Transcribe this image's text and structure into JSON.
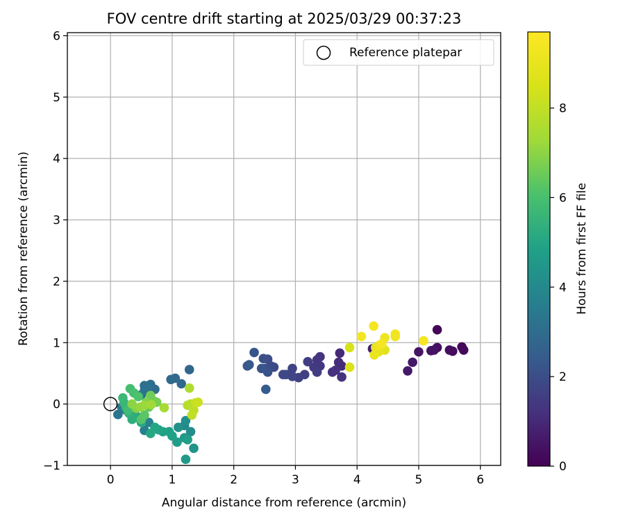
{
  "chart_data": {
    "type": "scatter",
    "title": "FOV centre drift starting at 2025/03/29 00:37:23",
    "xlabel": "Angular distance from reference (arcmin)",
    "ylabel": "Rotation from reference (arcmin)",
    "xlim": [
      -0.7,
      6.33
    ],
    "ylim": [
      -1.0,
      6.05
    ],
    "xticks": [
      0,
      1,
      2,
      3,
      4,
      5,
      6
    ],
    "yticks": [
      -1,
      0,
      1,
      2,
      3,
      4,
      5,
      6
    ],
    "grid": true,
    "legend": {
      "placement": "top-right",
      "entries": [
        "Reference platepar"
      ]
    },
    "reference_point": {
      "x": 0,
      "y": 0,
      "label": "Reference platepar"
    },
    "colorbar": {
      "label": "Hours from first FF file",
      "colormap": "viridis",
      "range": [
        0,
        9.7
      ],
      "ticks": [
        0,
        2,
        4,
        6,
        8
      ]
    },
    "points": [
      {
        "x": 5.3,
        "y": 1.21,
        "h": 0.1
      },
      {
        "x": 5.7,
        "y": 0.93,
        "h": 0.15
      },
      {
        "x": 5.73,
        "y": 0.88,
        "h": 0.2
      },
      {
        "x": 5.55,
        "y": 0.86,
        "h": 0.25
      },
      {
        "x": 5.5,
        "y": 0.88,
        "h": 0.3
      },
      {
        "x": 5.3,
        "y": 0.92,
        "h": 0.35
      },
      {
        "x": 5.25,
        "y": 0.88,
        "h": 0.4
      },
      {
        "x": 5.2,
        "y": 0.87,
        "h": 0.45
      },
      {
        "x": 5.0,
        "y": 0.85,
        "h": 0.5
      },
      {
        "x": 4.9,
        "y": 0.68,
        "h": 0.55
      },
      {
        "x": 4.82,
        "y": 0.54,
        "h": 0.6
      },
      {
        "x": 4.25,
        "y": 0.9,
        "h": 0.7
      },
      {
        "x": 3.72,
        "y": 0.83,
        "h": 1.0
      },
      {
        "x": 3.75,
        "y": 0.62,
        "h": 1.05
      },
      {
        "x": 3.7,
        "y": 0.68,
        "h": 1.1
      },
      {
        "x": 3.65,
        "y": 0.55,
        "h": 1.15
      },
      {
        "x": 3.6,
        "y": 0.52,
        "h": 1.2
      },
      {
        "x": 3.75,
        "y": 0.44,
        "h": 1.25
      },
      {
        "x": 3.4,
        "y": 0.77,
        "h": 1.3
      },
      {
        "x": 3.35,
        "y": 0.72,
        "h": 1.35
      },
      {
        "x": 3.4,
        "y": 0.62,
        "h": 1.4
      },
      {
        "x": 3.3,
        "y": 0.6,
        "h": 1.45
      },
      {
        "x": 3.35,
        "y": 0.52,
        "h": 1.5
      },
      {
        "x": 3.2,
        "y": 0.69,
        "h": 1.55
      },
      {
        "x": 3.15,
        "y": 0.48,
        "h": 1.6
      },
      {
        "x": 3.05,
        "y": 0.43,
        "h": 1.65
      },
      {
        "x": 2.95,
        "y": 0.58,
        "h": 1.7
      },
      {
        "x": 2.95,
        "y": 0.45,
        "h": 1.75
      },
      {
        "x": 2.85,
        "y": 0.48,
        "h": 1.8
      },
      {
        "x": 2.8,
        "y": 0.48,
        "h": 1.85
      },
      {
        "x": 2.65,
        "y": 0.6,
        "h": 1.9
      },
      {
        "x": 2.6,
        "y": 0.62,
        "h": 1.95
      },
      {
        "x": 2.55,
        "y": 0.73,
        "h": 2.0
      },
      {
        "x": 2.48,
        "y": 0.74,
        "h": 2.05
      },
      {
        "x": 2.5,
        "y": 0.58,
        "h": 2.1
      },
      {
        "x": 2.55,
        "y": 0.52,
        "h": 2.15
      },
      {
        "x": 2.45,
        "y": 0.58,
        "h": 2.2
      },
      {
        "x": 2.33,
        "y": 0.84,
        "h": 2.25
      },
      {
        "x": 2.25,
        "y": 0.64,
        "h": 2.3
      },
      {
        "x": 2.22,
        "y": 0.62,
        "h": 2.35
      },
      {
        "x": 2.52,
        "y": 0.24,
        "h": 2.4
      },
      {
        "x": 1.28,
        "y": 0.56,
        "h": 2.8
      },
      {
        "x": 1.15,
        "y": 0.33,
        "h": 2.85
      },
      {
        "x": 1.05,
        "y": 0.42,
        "h": 2.9
      },
      {
        "x": 0.98,
        "y": 0.4,
        "h": 2.95
      },
      {
        "x": 0.72,
        "y": 0.24,
        "h": 3.0
      },
      {
        "x": 0.65,
        "y": 0.32,
        "h": 3.05
      },
      {
        "x": 0.55,
        "y": 0.3,
        "h": 3.1
      },
      {
        "x": 0.6,
        "y": 0.25,
        "h": 3.15
      },
      {
        "x": 0.55,
        "y": 0.22,
        "h": 3.2
      },
      {
        "x": 0.5,
        "y": 0.15,
        "h": 3.25
      },
      {
        "x": 0.12,
        "y": -0.17,
        "h": 3.3
      },
      {
        "x": 0.18,
        "y": -0.05,
        "h": 3.35
      },
      {
        "x": 0.25,
        "y": -0.1,
        "h": 3.4
      },
      {
        "x": 0.45,
        "y": -0.22,
        "h": 3.5
      },
      {
        "x": 0.55,
        "y": -0.43,
        "h": 3.6
      },
      {
        "x": 0.62,
        "y": -0.3,
        "h": 3.7
      },
      {
        "x": 0.4,
        "y": -0.18,
        "h": 3.8
      },
      {
        "x": 1.2,
        "y": -0.35,
        "h": 4.0
      },
      {
        "x": 1.3,
        "y": -0.45,
        "h": 4.1
      },
      {
        "x": 1.22,
        "y": -0.27,
        "h": 4.2
      },
      {
        "x": 1.1,
        "y": -0.38,
        "h": 4.3
      },
      {
        "x": 1.35,
        "y": -0.72,
        "h": 4.4
      },
      {
        "x": 1.2,
        "y": -0.55,
        "h": 4.5
      },
      {
        "x": 1.22,
        "y": -0.9,
        "h": 4.6
      },
      {
        "x": 1.08,
        "y": -0.62,
        "h": 4.7
      },
      {
        "x": 1.25,
        "y": -0.58,
        "h": 4.75
      },
      {
        "x": 1.0,
        "y": -0.52,
        "h": 4.8
      },
      {
        "x": 0.95,
        "y": -0.45,
        "h": 4.85
      },
      {
        "x": 0.85,
        "y": -0.45,
        "h": 4.9
      },
      {
        "x": 0.78,
        "y": -0.42,
        "h": 4.95
      },
      {
        "x": 0.72,
        "y": -0.38,
        "h": 5.0
      },
      {
        "x": 0.65,
        "y": -0.48,
        "h": 5.05
      },
      {
        "x": 0.5,
        "y": -0.3,
        "h": 5.1
      },
      {
        "x": 0.42,
        "y": -0.22,
        "h": 5.2
      },
      {
        "x": 0.35,
        "y": -0.25,
        "h": 5.3
      },
      {
        "x": 0.3,
        "y": -0.15,
        "h": 5.4
      },
      {
        "x": 0.25,
        "y": -0.05,
        "h": 5.5
      },
      {
        "x": 0.22,
        "y": 0.02,
        "h": 5.6
      },
      {
        "x": 0.2,
        "y": 0.1,
        "h": 5.7
      },
      {
        "x": 0.28,
        "y": -0.1,
        "h": 5.8
      },
      {
        "x": 0.32,
        "y": 0.25,
        "h": 5.9
      },
      {
        "x": 0.38,
        "y": 0.18,
        "h": 6.0
      },
      {
        "x": 0.45,
        "y": 0.12,
        "h": 6.1
      },
      {
        "x": 0.5,
        "y": -0.25,
        "h": 6.2
      },
      {
        "x": 0.55,
        "y": -0.18,
        "h": 6.3
      },
      {
        "x": 0.62,
        "y": -0.05,
        "h": 6.4
      },
      {
        "x": 0.7,
        "y": 0.05,
        "h": 6.5
      },
      {
        "x": 0.65,
        "y": 0.14,
        "h": 6.6
      },
      {
        "x": 0.75,
        "y": 0.03,
        "h": 6.7
      },
      {
        "x": 0.58,
        "y": 0.03,
        "h": 6.8
      },
      {
        "x": 0.42,
        "y": -0.07,
        "h": 6.9
      },
      {
        "x": 0.35,
        "y": 0.0,
        "h": 7.0
      },
      {
        "x": 0.48,
        "y": -0.05,
        "h": 7.1
      },
      {
        "x": 0.55,
        "y": -0.02,
        "h": 7.2
      },
      {
        "x": 0.66,
        "y": -0.01,
        "h": 7.3
      },
      {
        "x": 0.87,
        "y": -0.06,
        "h": 7.4
      },
      {
        "x": 1.28,
        "y": 0.26,
        "h": 7.6
      },
      {
        "x": 1.25,
        "y": -0.02,
        "h": 7.7
      },
      {
        "x": 1.3,
        "y": 0.0,
        "h": 7.8
      },
      {
        "x": 1.35,
        "y": -0.1,
        "h": 7.9
      },
      {
        "x": 1.32,
        "y": -0.18,
        "h": 8.0
      },
      {
        "x": 1.38,
        "y": 0.02,
        "h": 8.1
      },
      {
        "x": 1.42,
        "y": 0.03,
        "h": 8.2
      },
      {
        "x": 3.88,
        "y": 0.92,
        "h": 8.5
      },
      {
        "x": 3.88,
        "y": 0.6,
        "h": 8.6
      },
      {
        "x": 4.4,
        "y": 0.98,
        "h": 8.7
      },
      {
        "x": 4.45,
        "y": 0.88,
        "h": 8.8
      },
      {
        "x": 4.35,
        "y": 0.85,
        "h": 8.9
      },
      {
        "x": 4.3,
        "y": 0.92,
        "h": 9.0
      },
      {
        "x": 4.28,
        "y": 0.8,
        "h": 9.1
      },
      {
        "x": 4.35,
        "y": 0.95,
        "h": 9.15
      },
      {
        "x": 4.45,
        "y": 1.08,
        "h": 9.2
      },
      {
        "x": 4.62,
        "y": 1.1,
        "h": 9.25
      },
      {
        "x": 4.62,
        "y": 1.14,
        "h": 9.3
      },
      {
        "x": 4.07,
        "y": 1.1,
        "h": 9.35
      },
      {
        "x": 4.27,
        "y": 1.27,
        "h": 9.4
      },
      {
        "x": 5.08,
        "y": 1.03,
        "h": 9.45
      },
      {
        "x": 4.4,
        "y": 0.98,
        "h": 9.5
      }
    ]
  }
}
